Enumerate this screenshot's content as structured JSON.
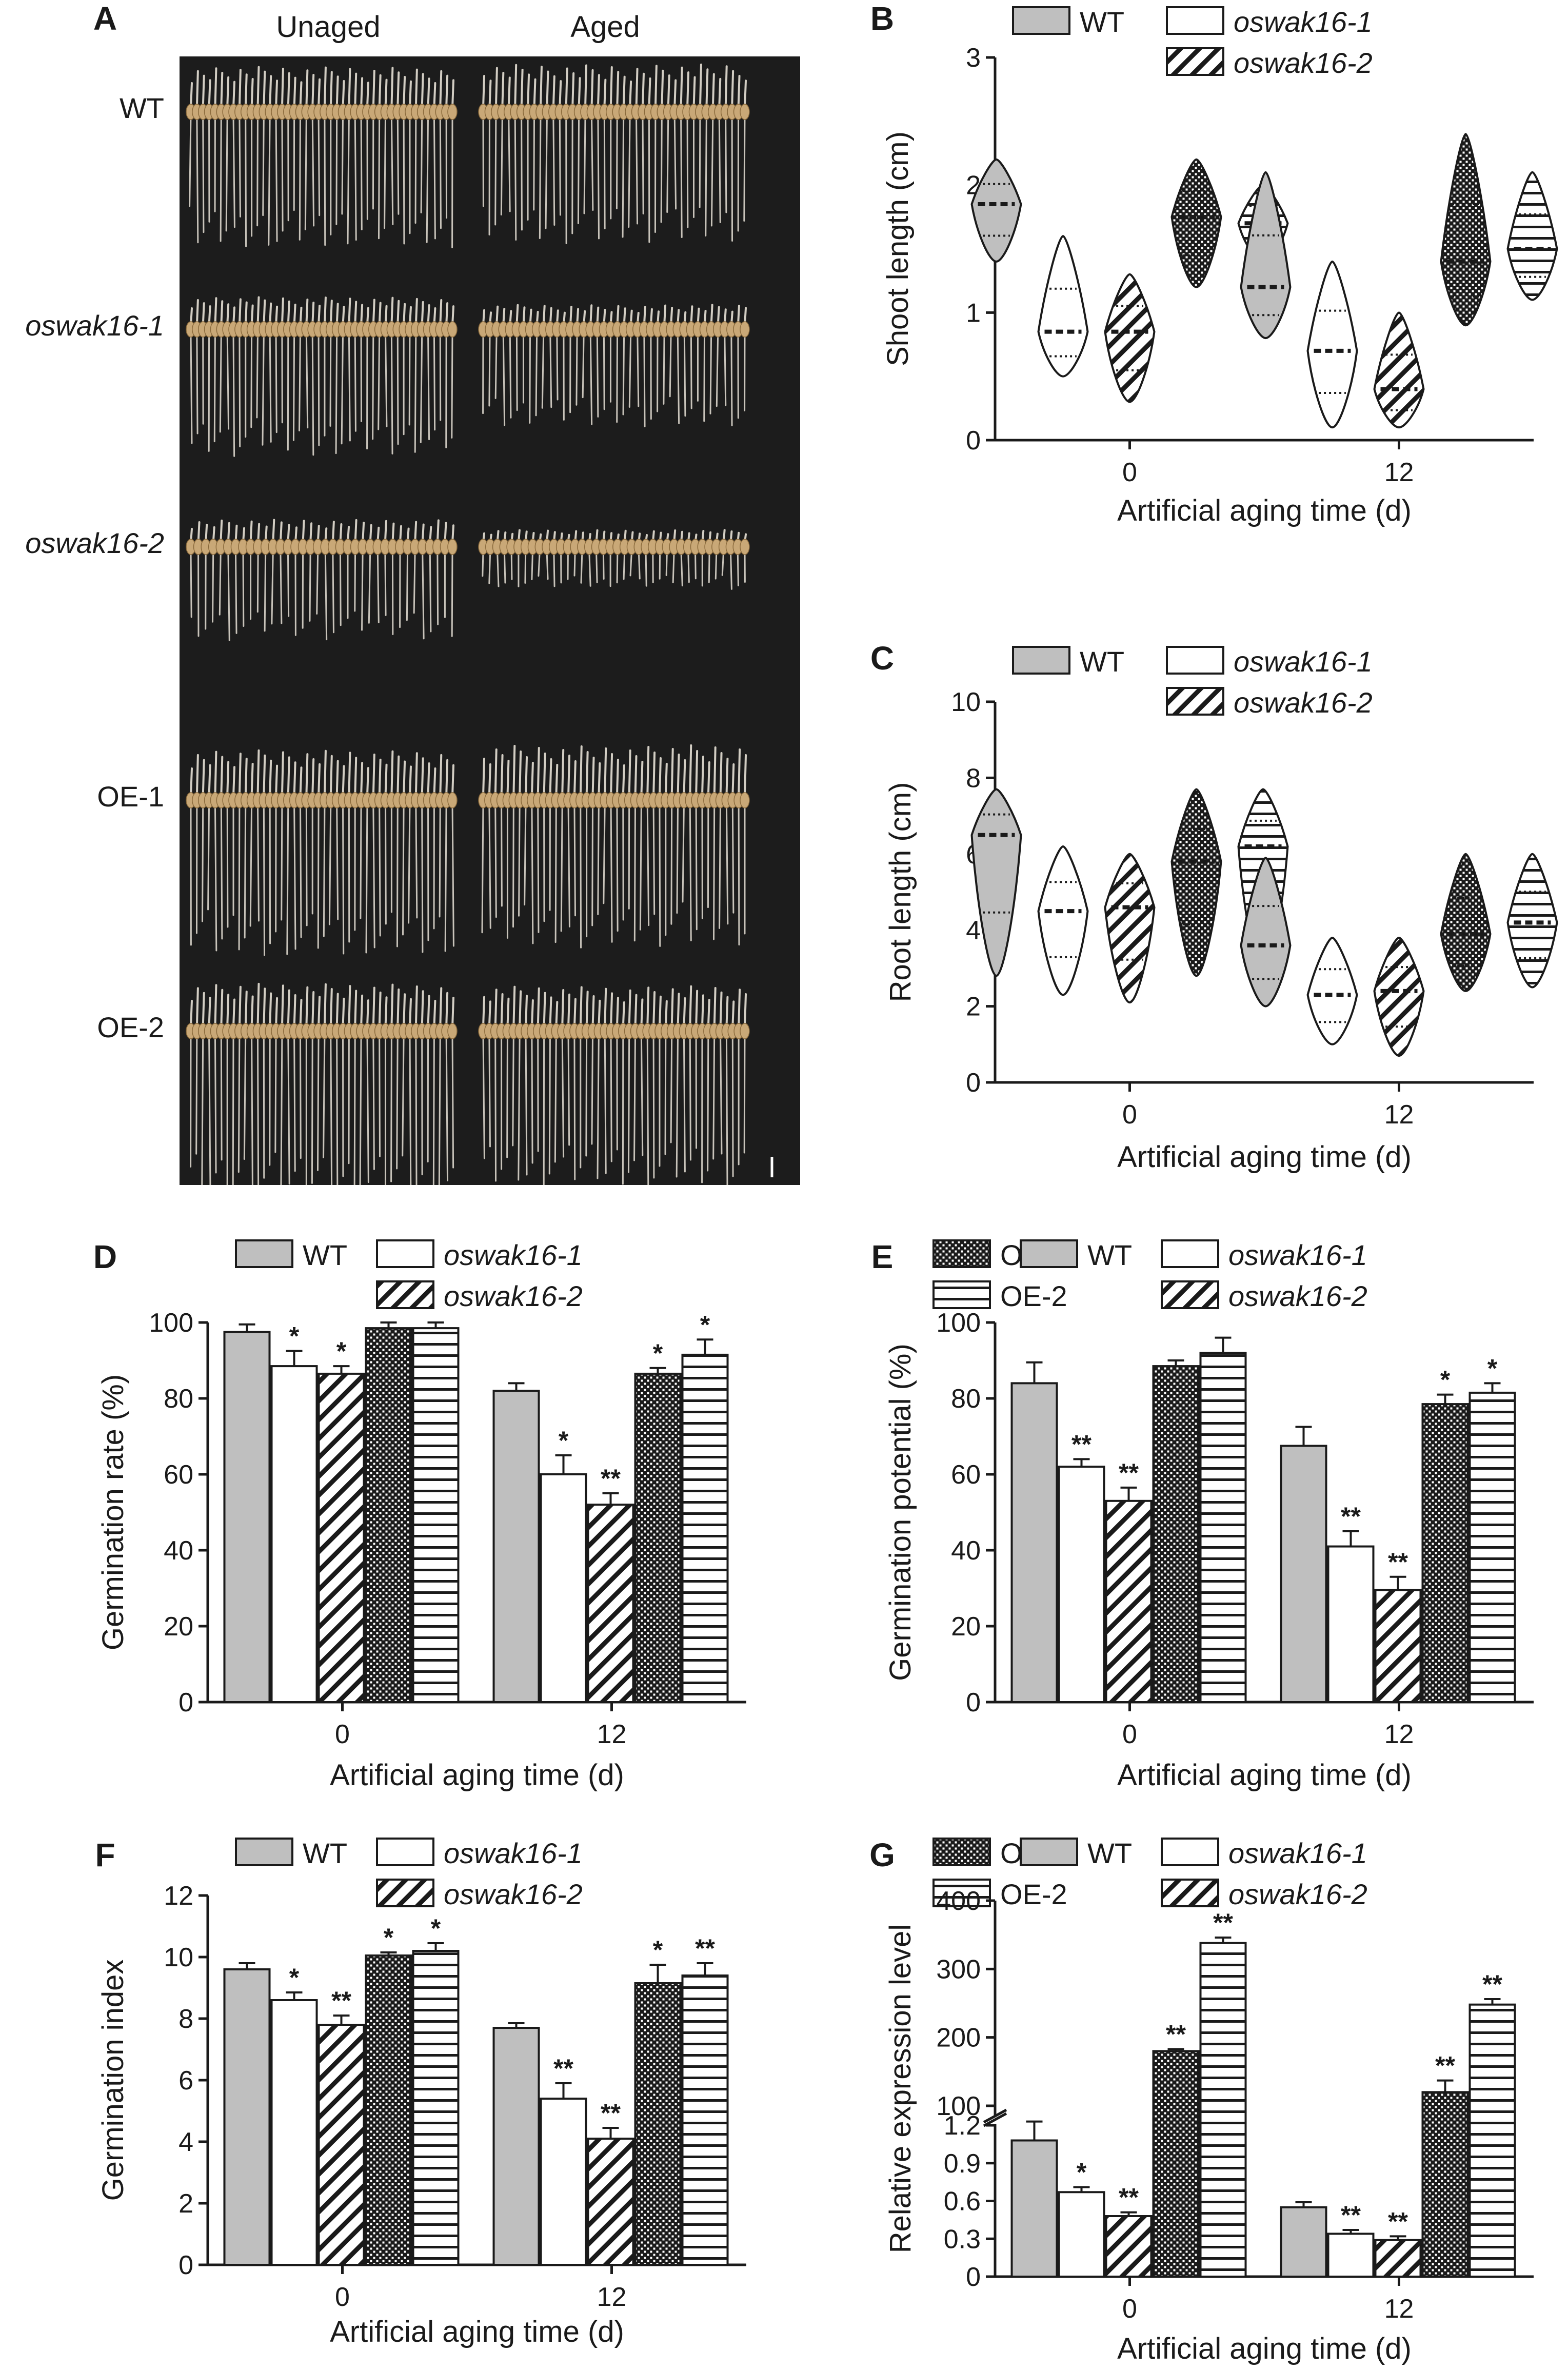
{
  "legend": [
    {
      "key": "wt",
      "label": "WT",
      "italic": false
    },
    {
      "key": "k1",
      "label": "oswak16-1",
      "italic": true
    },
    {
      "key": "oe1",
      "label": "OE-1",
      "italic": false
    },
    {
      "key": "k2",
      "label": "oswak16-2",
      "italic": true
    },
    {
      "key": "oe2",
      "label": "OE-2",
      "italic": false
    }
  ],
  "colors": {
    "wt": "#bfbfbf",
    "fill_white": "#ffffff",
    "stroke": "#1a1a1a",
    "photo_bg": "#1c1c1c",
    "seed": "#c9a877",
    "root": "#e6e1d6"
  },
  "photo": {
    "letter": "A",
    "columns": [
      "Unaged",
      "Aged"
    ],
    "rows": [
      {
        "label": "WT",
        "italic": false
      },
      {
        "label": "oswak16-1",
        "italic": true
      },
      {
        "label": "oswak16-2",
        "italic": true
      },
      {
        "label": "OE-1",
        "italic": false
      },
      {
        "label": "OE-2",
        "italic": false
      }
    ]
  },
  "chart_data": [
    {
      "panel": "B",
      "type": "violin",
      "ylabel": "Shoot length (cm)",
      "xlabel": "Artificial  aging time (d)",
      "categories": [
        "0",
        "12"
      ],
      "ylim": [
        0,
        3
      ],
      "yticks": [
        0,
        1,
        2,
        3
      ],
      "series": [
        {
          "name": "WT",
          "key": "wt",
          "values": [
            {
              "min": 1.4,
              "max": 2.2,
              "median": 1.85
            },
            {
              "min": 0.8,
              "max": 2.1,
              "median": 1.2
            }
          ]
        },
        {
          "name": "oswak16-1",
          "key": "k1",
          "values": [
            {
              "min": 0.5,
              "max": 1.6,
              "median": 0.85
            },
            {
              "min": 0.1,
              "max": 1.4,
              "median": 0.7
            }
          ]
        },
        {
          "name": "oswak16-2",
          "key": "k2",
          "values": [
            {
              "min": 0.3,
              "max": 1.3,
              "median": 0.85
            },
            {
              "min": 0.1,
              "max": 1.0,
              "median": 0.4
            }
          ]
        },
        {
          "name": "OE-1",
          "key": "oe1",
          "values": [
            {
              "min": 1.2,
              "max": 2.2,
              "median": 1.75
            },
            {
              "min": 0.9,
              "max": 2.4,
              "median": 1.4
            }
          ]
        },
        {
          "name": "OE-2",
          "key": "oe2",
          "values": [
            {
              "min": 1.4,
              "max": 2.0,
              "median": 1.7
            },
            {
              "min": 1.1,
              "max": 2.1,
              "median": 1.5
            }
          ]
        }
      ]
    },
    {
      "panel": "C",
      "type": "violin",
      "ylabel": "Root length (cm)",
      "xlabel": "Artificial aging time (d)",
      "categories": [
        "0",
        "12"
      ],
      "ylim": [
        0,
        10
      ],
      "yticks": [
        0,
        2,
        4,
        6,
        8,
        10
      ],
      "series": [
        {
          "name": "WT",
          "key": "wt",
          "values": [
            {
              "min": 2.8,
              "max": 7.7,
              "median": 6.5
            },
            {
              "min": 2.0,
              "max": 5.9,
              "median": 3.6
            }
          ]
        },
        {
          "name": "oswak16-1",
          "key": "k1",
          "values": [
            {
              "min": 2.3,
              "max": 6.2,
              "median": 4.5
            },
            {
              "min": 1.0,
              "max": 3.8,
              "median": 2.3
            }
          ]
        },
        {
          "name": "oswak16-2",
          "key": "k2",
          "values": [
            {
              "min": 2.1,
              "max": 6.0,
              "median": 4.6
            },
            {
              "min": 0.7,
              "max": 3.8,
              "median": 2.4
            }
          ]
        },
        {
          "name": "OE-1",
          "key": "oe1",
          "values": [
            {
              "min": 2.8,
              "max": 7.7,
              "median": 5.8
            },
            {
              "min": 2.4,
              "max": 6.0,
              "median": 3.9
            }
          ]
        },
        {
          "name": "OE-2",
          "key": "oe2",
          "values": [
            {
              "min": 2.8,
              "max": 7.7,
              "median": 6.2
            },
            {
              "min": 2.5,
              "max": 6.0,
              "median": 4.2
            }
          ]
        }
      ]
    },
    {
      "panel": "D",
      "type": "bar",
      "ylabel": "Germination rate (%)",
      "xlabel": "Artificial aging time (d)",
      "categories": [
        "0",
        "12"
      ],
      "ylim": [
        0,
        100
      ],
      "yticks": [
        0,
        20,
        40,
        60,
        80,
        100
      ],
      "series": [
        {
          "name": "WT",
          "key": "wt",
          "values": [
            97.5,
            82
          ],
          "errors": [
            2,
            2
          ],
          "stars": [
            "",
            ""
          ]
        },
        {
          "name": "oswak16-1",
          "key": "k1",
          "values": [
            88.5,
            60
          ],
          "errors": [
            4,
            5
          ],
          "stars": [
            "*",
            "*"
          ]
        },
        {
          "name": "oswak16-2",
          "key": "k2",
          "values": [
            86.5,
            52
          ],
          "errors": [
            2,
            3
          ],
          "stars": [
            "*",
            "**"
          ]
        },
        {
          "name": "OE-1",
          "key": "oe1",
          "values": [
            98.5,
            86.5
          ],
          "errors": [
            1.5,
            1.5
          ],
          "stars": [
            "",
            "*"
          ]
        },
        {
          "name": "OE-2",
          "key": "oe2",
          "values": [
            98.5,
            91.5
          ],
          "errors": [
            1.5,
            4
          ],
          "stars": [
            "",
            "*"
          ]
        }
      ]
    },
    {
      "panel": "E",
      "type": "bar",
      "ylabel": "Germination potential (%)",
      "xlabel": "Artificial aging time (d)",
      "categories": [
        "0",
        "12"
      ],
      "ylim": [
        0,
        100
      ],
      "yticks": [
        0,
        20,
        40,
        60,
        80,
        100
      ],
      "series": [
        {
          "name": "WT",
          "key": "wt",
          "values": [
            84,
            67.5
          ],
          "errors": [
            5.5,
            5
          ],
          "stars": [
            "",
            ""
          ]
        },
        {
          "name": "oswak16-1",
          "key": "k1",
          "values": [
            62,
            41
          ],
          "errors": [
            2,
            4
          ],
          "stars": [
            "**",
            "**"
          ]
        },
        {
          "name": "oswak16-2",
          "key": "k2",
          "values": [
            53,
            29.5
          ],
          "errors": [
            3.5,
            3.5
          ],
          "stars": [
            "**",
            "**"
          ]
        },
        {
          "name": "OE-1",
          "key": "oe1",
          "values": [
            88.5,
            78.5
          ],
          "errors": [
            1.5,
            2.5
          ],
          "stars": [
            "",
            "*"
          ]
        },
        {
          "name": "OE-2",
          "key": "oe2",
          "values": [
            92,
            81.5
          ],
          "errors": [
            4,
            2.5
          ],
          "stars": [
            "",
            "*"
          ]
        }
      ]
    },
    {
      "panel": "F",
      "type": "bar",
      "ylabel": "Germination index",
      "xlabel": "Artificial aging time (d)",
      "categories": [
        "0",
        "12"
      ],
      "ylim": [
        0,
        12
      ],
      "yticks": [
        0,
        2,
        4,
        6,
        8,
        10,
        12
      ],
      "series": [
        {
          "name": "WT",
          "key": "wt",
          "values": [
            9.6,
            7.7
          ],
          "errors": [
            0.2,
            0.15
          ],
          "stars": [
            "",
            ""
          ]
        },
        {
          "name": "oswak16-1",
          "key": "k1",
          "values": [
            8.6,
            5.4
          ],
          "errors": [
            0.25,
            0.5
          ],
          "stars": [
            "*",
            "**"
          ]
        },
        {
          "name": "oswak16-2",
          "key": "k2",
          "values": [
            7.8,
            4.1
          ],
          "errors": [
            0.3,
            0.35
          ],
          "stars": [
            "**",
            "**"
          ]
        },
        {
          "name": "OE-1",
          "key": "oe1",
          "values": [
            10.05,
            9.15
          ],
          "errors": [
            0.1,
            0.6
          ],
          "stars": [
            "*",
            "*"
          ]
        },
        {
          "name": "OE-2",
          "key": "oe2",
          "values": [
            10.2,
            9.4
          ],
          "errors": [
            0.25,
            0.4
          ],
          "stars": [
            "*",
            "**"
          ]
        }
      ]
    },
    {
      "panel": "G",
      "type": "bar",
      "ylabel": "Relative expression level",
      "xlabel": "Artificial aging time (d)",
      "categories": [
        "0",
        "12"
      ],
      "broken_axis": true,
      "ylim_lower": [
        0,
        1.2
      ],
      "yticks_lower": [
        0,
        0.3,
        0.6,
        0.9,
        1.2
      ],
      "ylim_upper": [
        100,
        400
      ],
      "yticks_upper": [
        100,
        200,
        300,
        400
      ],
      "series": [
        {
          "name": "WT",
          "key": "wt",
          "values": [
            1.08,
            0.55
          ],
          "errors": [
            0.15,
            0.04
          ],
          "stars": [
            "",
            ""
          ]
        },
        {
          "name": "oswak16-1",
          "key": "k1",
          "values": [
            0.67,
            0.34
          ],
          "errors": [
            0.04,
            0.03
          ],
          "stars": [
            "*",
            "**"
          ]
        },
        {
          "name": "oswak16-2",
          "key": "k2",
          "values": [
            0.48,
            0.29
          ],
          "errors": [
            0.03,
            0.03
          ],
          "stars": [
            "**",
            "**"
          ]
        },
        {
          "name": "OE-1",
          "key": "oe1",
          "values": [
            180,
            120
          ],
          "errors": [
            3,
            17
          ],
          "stars": [
            "**",
            "**"
          ]
        },
        {
          "name": "OE-2",
          "key": "oe2",
          "values": [
            338,
            248
          ],
          "errors": [
            8,
            8
          ],
          "stars": [
            "**",
            "**"
          ]
        }
      ]
    }
  ]
}
